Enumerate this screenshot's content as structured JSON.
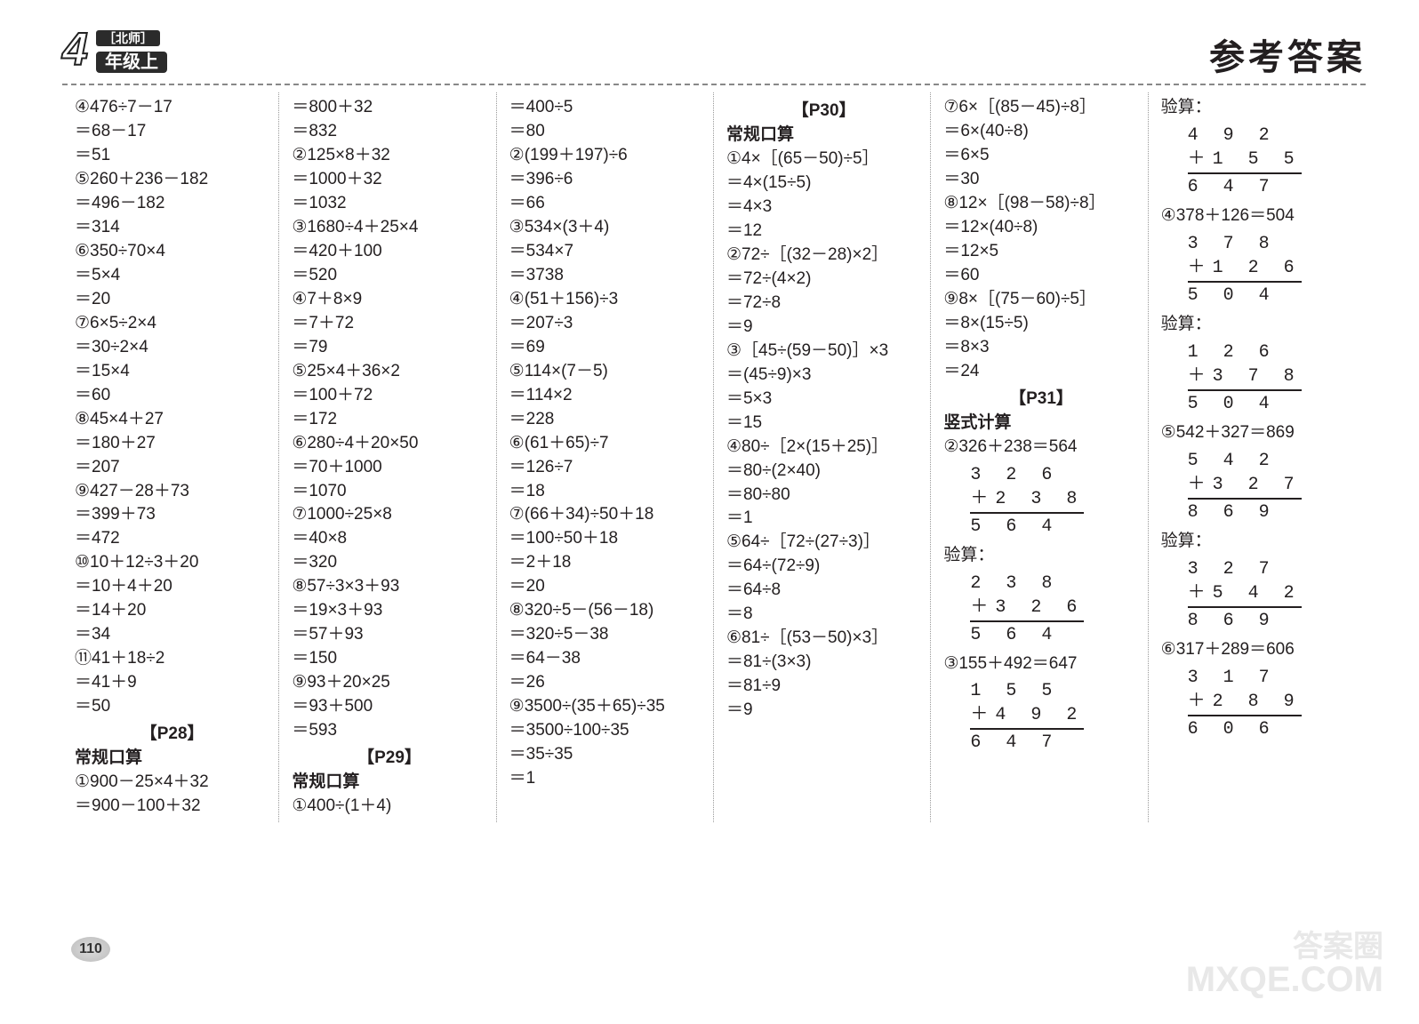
{
  "header": {
    "badge_big": "4",
    "badge_ribbon": "［北师］",
    "badge_grade": "年级上",
    "title_right": "参考答案"
  },
  "col1": [
    "④476÷7－17",
    "＝68－17",
    "＝51",
    "⑤260＋236－182",
    "＝496－182",
    "＝314",
    "⑥350÷70×4",
    "＝5×4",
    "＝20",
    "⑦6×5÷2×4",
    "＝30÷2×4",
    "＝15×4",
    "＝60",
    "⑧45×4＋27",
    "＝180＋27",
    "＝207",
    "⑨427－28＋73",
    "＝399＋73",
    "＝472",
    "⑩10＋12÷3＋20",
    "＝10＋4＋20",
    "＝14＋20",
    "＝34",
    "⑪41＋18÷2",
    "＝41＋9",
    "＝50"
  ],
  "col1_section": "【P28】",
  "col1_sub": "常规口算",
  "col1_tail": [
    "①900－25×4＋32",
    "＝900－100＋32"
  ],
  "col2": [
    "＝800＋32",
    "＝832",
    "②125×8＋32",
    "＝1000＋32",
    "＝1032",
    "③1680÷4＋25×4",
    "＝420＋100",
    "＝520",
    "④7＋8×9",
    "＝7＋72",
    "＝79",
    "⑤25×4＋36×2",
    "＝100＋72",
    "＝172",
    "⑥280÷4＋20×50",
    "＝70＋1000",
    "＝1070",
    "⑦1000÷25×8",
    "＝40×8",
    "＝320",
    "⑧57÷3×3＋93",
    "＝19×3＋93",
    "＝57＋93",
    "＝150",
    "⑨93＋20×25",
    "＝93＋500",
    "＝593"
  ],
  "col2_section": "【P29】",
  "col2_sub": "常规口算",
  "col2_tail": [
    "①400÷(1＋4)"
  ],
  "col3": [
    "＝400÷5",
    "＝80",
    "②(199＋197)÷6",
    "＝396÷6",
    "＝66",
    "③534×(3＋4)",
    "＝534×7",
    "＝3738",
    "④(51＋156)÷3",
    "＝207÷3",
    "＝69",
    "⑤114×(7－5)",
    "＝114×2",
    "＝228",
    "⑥(61＋65)÷7",
    "＝126÷7",
    "＝18",
    "⑦(66＋34)÷50＋18",
    "＝100÷50＋18",
    "＝2＋18",
    "＝20",
    "⑧320÷5－(56－18)",
    "＝320÷5－38",
    "＝64－38",
    "＝26",
    "⑨3500÷(35＋65)÷35",
    "＝3500÷100÷35",
    "＝35÷35",
    "＝1"
  ],
  "col4_section": "【P30】",
  "col4_sub": "常规口算",
  "col4": [
    "①4×［(65－50)÷5］",
    "＝4×(15÷5)",
    "＝4×3",
    "＝12",
    "②72÷［(32－28)×2］",
    "＝72÷(4×2)",
    "＝72÷8",
    "＝9",
    "③［45÷(59－50)］×3",
    "＝(45÷9)×3",
    "＝5×3",
    "＝15",
    "④80÷［2×(15＋25)］",
    "＝80÷(2×40)",
    "＝80÷80",
    "＝1",
    "⑤64÷［72÷(27÷3)］",
    "＝64÷(72÷9)",
    "＝64÷8",
    "＝8",
    "⑥81÷［(53－50)×3］",
    "＝81÷(3×3)",
    "＝81÷9",
    "＝9"
  ],
  "col5_head": [
    "⑦6×［(85－45)÷8］",
    "＝6×(40÷8)",
    "＝6×5",
    "＝30",
    "⑧12×［(98－58)÷8］",
    "＝12×(40÷8)",
    "＝12×5",
    "＝60",
    "⑨8×［(75－60)÷5］",
    "＝8×(15÷5)",
    "＝8×3",
    "＝24"
  ],
  "col5_section": "【P31】",
  "col5_sub": "竖式计算",
  "col5_eq1": "②326＋238＝564",
  "col5_v1": {
    "a": "3 2 6",
    "b": "2 3 8",
    "s": "5 6 4"
  },
  "col5_chk_label": "验算：",
  "col5_v1c": {
    "a": "2 3 8",
    "b": "3 2 6",
    "s": "5 6 4"
  },
  "col5_eq2": "③155＋492＝647",
  "col5_v2": {
    "a": "1 5 5",
    "b": "4 9 2",
    "s": "6 4 7"
  },
  "col6_chk_label": "验算：",
  "col6_v1c": {
    "a": "4 9 2",
    "b": "1 5 5",
    "s": "6 4 7"
  },
  "col6_eq1": "④378＋126＝504",
  "col6_v1": {
    "a": "3 7 8",
    "b": "1 2 6",
    "s": "5 0 4"
  },
  "col6_v1chk": {
    "a": "1 2 6",
    "b": "3 7 8",
    "s": "5 0 4"
  },
  "col6_eq2": "⑤542＋327＝869",
  "col6_v2": {
    "a": "5 4 2",
    "b": "3 2 7",
    "s": "8 6 9"
  },
  "col6_v2chk": {
    "a": "3 2 7",
    "b": "5 4 2",
    "s": "8 6 9"
  },
  "col6_eq3": "⑥317＋289＝606",
  "col6_v3": {
    "a": "3 1 7",
    "b": "2 8 9",
    "s": "6 0 6"
  },
  "page_number": "110",
  "watermark_cn": "答案圈",
  "watermark_en": "MXQE.COM"
}
